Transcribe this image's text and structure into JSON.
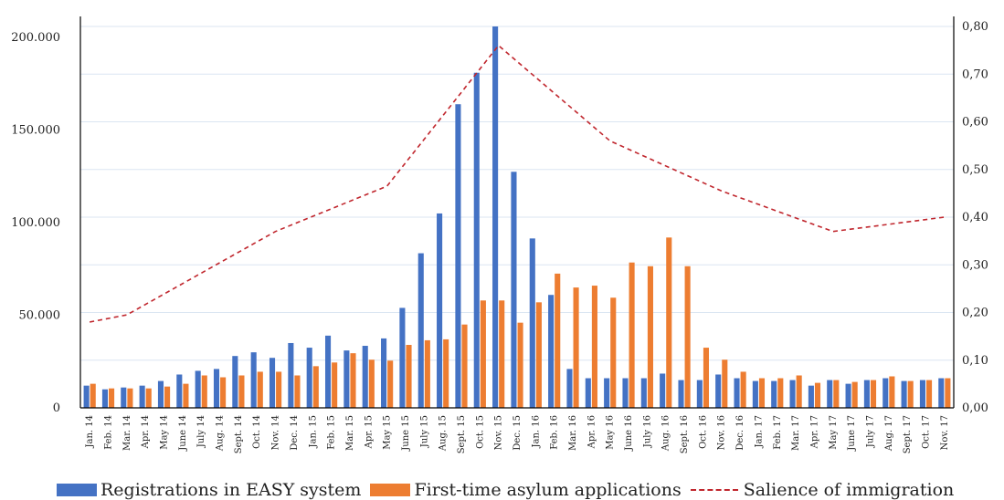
{
  "chart_data": {
    "type": "bar",
    "categories": [
      "Jan. 14",
      "Feb. 14",
      "Mar. 14",
      "Apr. 14",
      "May 14",
      "June 14",
      "July 14",
      "Aug. 14",
      "Sept. 14",
      "Oct. 14",
      "Nov. 14",
      "Dec. 14",
      "Jan. 15",
      "Feb. 15",
      "Mar. 15",
      "Apr. 15",
      "May 15",
      "June 15",
      "July 15",
      "Aug. 15",
      "Sept. 15",
      "Oct. 15",
      "Nov. 15",
      "Dec. 15",
      "Jan. 16",
      "Feb. 16",
      "Mar. 16",
      "Apr. 16",
      "May 16",
      "June 16",
      "July 16",
      "Aug. 16",
      "Sept. 16",
      "Oct. 16",
      "Nov. 16",
      "Dec. 16",
      "Jan. 17",
      "Feb. 17",
      "Mar. 17",
      "Apr. 17",
      "May 17",
      "June 17",
      "July 17",
      "Aug. 17",
      "Sept. 17",
      "Oct. 17",
      "Nov. 17"
    ],
    "series": [
      {
        "name": "Registrations in EASY system",
        "color": "#4472c4",
        "axis": "left",
        "values": [
          12000,
          10000,
          11000,
          12000,
          14500,
          18000,
          20000,
          21000,
          28000,
          30000,
          27000,
          35000,
          32500,
          39000,
          31000,
          33500,
          37500,
          54000,
          83500,
          105000,
          164000,
          181000,
          206000,
          127500,
          91500,
          61000,
          21000,
          16000,
          16000,
          16000,
          16000,
          18500,
          15000,
          15000,
          18000,
          16000,
          14500,
          14500,
          15000,
          12000,
          15000,
          13000,
          15000,
          16000,
          14500,
          15000,
          16000
        ]
      },
      {
        "name": "First-time asylum applications",
        "color": "#ed7d31",
        "axis": "left",
        "values": [
          13000,
          10500,
          10500,
          10500,
          11500,
          13000,
          17500,
          16500,
          17500,
          19500,
          19500,
          17500,
          22500,
          24500,
          29500,
          26000,
          25500,
          34000,
          36500,
          37000,
          45000,
          58000,
          58000,
          46000,
          57000,
          72500,
          65000,
          66000,
          59500,
          78500,
          76500,
          92000,
          76500,
          32500,
          26000,
          19500,
          16000,
          16000,
          17500,
          13500,
          15000,
          14000,
          15000,
          17000,
          14500,
          15000,
          16000
        ]
      },
      {
        "name": "Salience of immigration",
        "color": "#c0262d",
        "axis": "right",
        "style": "dashed",
        "x": [
          "Jan. 14",
          "Mar. 14",
          "Nov. 14",
          "May 15",
          "Nov. 15",
          "May 16",
          "Nov. 16",
          "May 17",
          "Nov. 17"
        ],
        "values": [
          0.18,
          0.195,
          0.37,
          0.465,
          0.76,
          0.56,
          0.455,
          0.37,
          0.4
        ]
      }
    ],
    "y_left": {
      "ticks": [
        "0",
        "50.000",
        "100.000",
        "150.000",
        "200.000"
      ],
      "ylim": [
        0,
        206000
      ]
    },
    "y_right": {
      "ticks": [
        "0,00",
        "0,10",
        "0,20",
        "0,30",
        "0,40",
        "0,50",
        "0,60",
        "0,70",
        "0,80"
      ],
      "ylim": [
        0,
        0.8
      ]
    },
    "grid": true,
    "legend_position": "bottom"
  }
}
